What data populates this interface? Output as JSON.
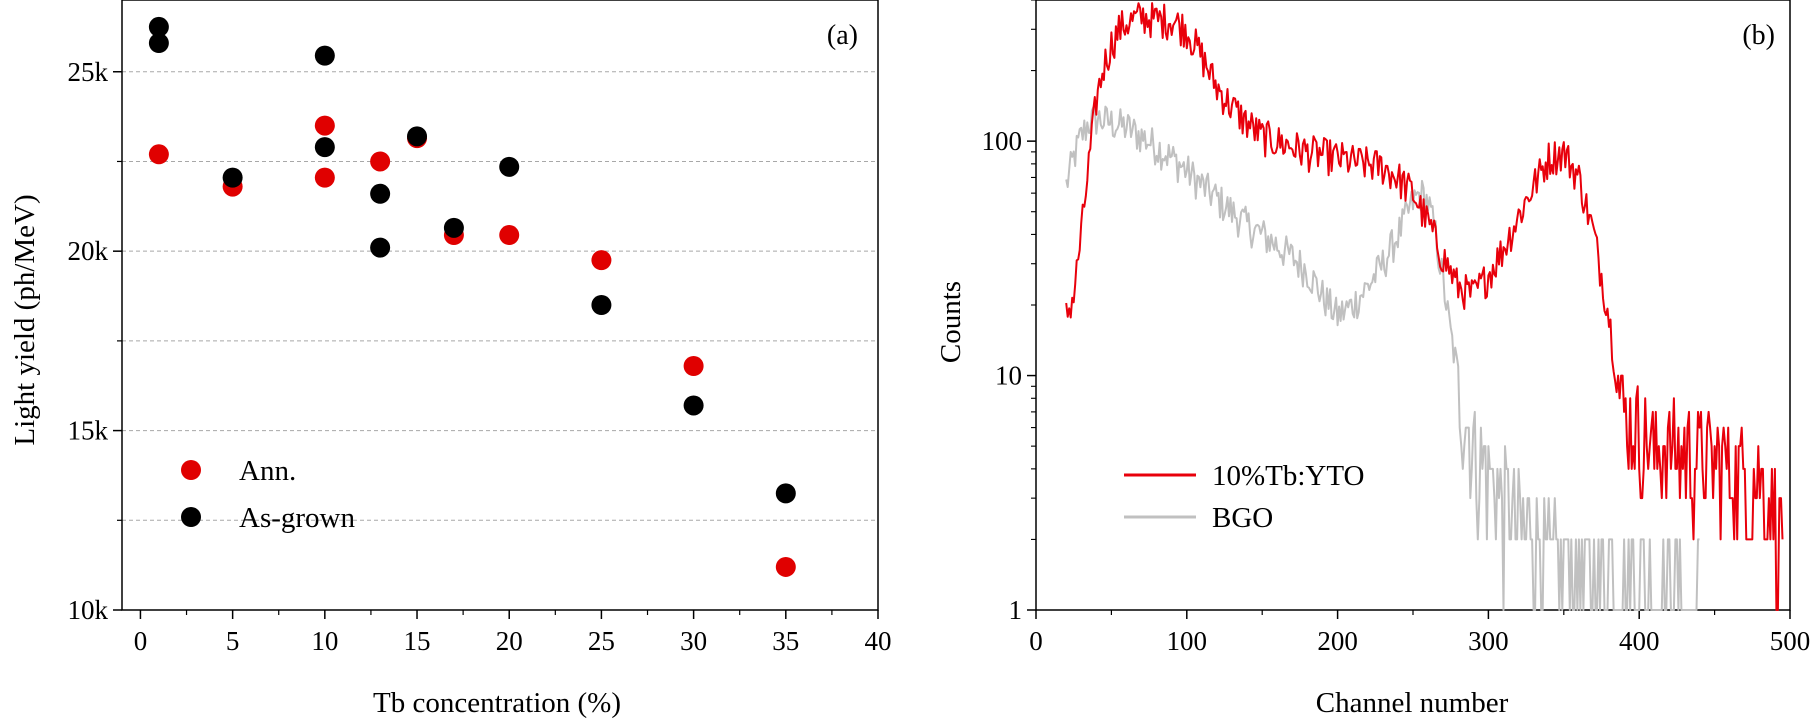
{
  "chart_data": [
    {
      "panel": "(a)",
      "type": "scatter",
      "title": "",
      "xlabel": "Tb concentration (%)",
      "ylabel": "Light yield (ph/MeV)",
      "xlim": [
        -1,
        40
      ],
      "ylim": [
        10000,
        27000
      ],
      "xticks": [
        0,
        5,
        10,
        15,
        20,
        25,
        30,
        35,
        40
      ],
      "xtick_labels": [
        "0",
        "5",
        "10",
        "15",
        "20",
        "25",
        "30",
        "35",
        "40"
      ],
      "yticks": [
        10000,
        15000,
        20000,
        25000
      ],
      "ytick_labels": [
        "10k",
        "15k",
        "20k",
        "25k"
      ],
      "grid_y": [
        12500,
        15000,
        17500,
        20000,
        22500,
        25000
      ],
      "legend_position": "lower-left",
      "series": [
        {
          "name": "Ann.",
          "color": "#e00000",
          "points": [
            [
              1,
              22700
            ],
            [
              5,
              21800
            ],
            [
              10,
              23500
            ],
            [
              10,
              22050
            ],
            [
              13,
              22500
            ],
            [
              15,
              23150
            ],
            [
              17,
              20450
            ],
            [
              20,
              20450
            ],
            [
              25,
              19750
            ],
            [
              30,
              16800
            ],
            [
              35,
              11200
            ]
          ]
        },
        {
          "name": "As-grown",
          "color": "#000000",
          "points": [
            [
              1,
              26250
            ],
            [
              1,
              25800
            ],
            [
              5,
              22050
            ],
            [
              10,
              25450
            ],
            [
              10,
              22900
            ],
            [
              13,
              21600
            ],
            [
              13,
              20100
            ],
            [
              15,
              23200
            ],
            [
              17,
              20650
            ],
            [
              20,
              22350
            ],
            [
              25,
              18500
            ],
            [
              30,
              15700
            ],
            [
              35,
              13250
            ]
          ]
        }
      ]
    },
    {
      "panel": "(b)",
      "type": "line",
      "title": "",
      "xlabel": "Channel number",
      "ylabel": "Counts",
      "xlim": [
        0,
        500
      ],
      "ylim": [
        1,
        400
      ],
      "yscale": "log",
      "xticks": [
        0,
        100,
        200,
        300,
        400,
        500
      ],
      "xtick_labels": [
        "0",
        "100",
        "200",
        "300",
        "400",
        "500"
      ],
      "yticks": [
        1,
        10,
        100
      ],
      "ytick_labels": [
        "1",
        "10",
        "100"
      ],
      "legend_position": "lower-left",
      "series": [
        {
          "name": "10%Tb:YTO",
          "color": "#e8000b",
          "x": [
            20,
            25,
            30,
            35,
            40,
            45,
            50,
            55,
            60,
            70,
            80,
            90,
            100,
            110,
            120,
            130,
            140,
            150,
            160,
            170,
            180,
            190,
            200,
            210,
            220,
            230,
            240,
            250,
            260,
            270,
            280,
            290,
            300,
            310,
            320,
            330,
            340,
            350,
            360,
            370,
            380,
            385,
            390,
            400,
            410,
            420,
            430,
            440,
            450,
            460,
            470,
            480,
            490,
            495
          ],
          "y": [
            18,
            22,
            40,
            80,
            150,
            210,
            260,
            300,
            320,
            340,
            330,
            330,
            300,
            230,
            170,
            140,
            120,
            105,
            100,
            95,
            90,
            88,
            85,
            82,
            80,
            78,
            70,
            60,
            45,
            32,
            24,
            22,
            27,
            35,
            48,
            65,
            85,
            90,
            70,
            40,
            18,
            10,
            7,
            6,
            5,
            5,
            5,
            4.5,
            4.5,
            4,
            4,
            3.5,
            3,
            2
          ]
        },
        {
          "name": "BGO",
          "color": "#c0c0c0",
          "x": [
            20,
            25,
            30,
            35,
            40,
            50,
            60,
            70,
            80,
            90,
            100,
            110,
            120,
            130,
            140,
            150,
            160,
            170,
            180,
            190,
            200,
            210,
            220,
            230,
            240,
            250,
            255,
            260,
            265,
            270,
            275,
            280,
            285,
            290,
            300,
            310,
            320,
            330,
            340,
            350,
            360,
            370,
            380,
            390,
            400,
            410,
            420,
            430,
            440
          ],
          "y": [
            65,
            85,
            105,
            120,
            125,
            120,
            115,
            105,
            95,
            85,
            75,
            65,
            57,
            50,
            44,
            40,
            36,
            32,
            28,
            22,
            18,
            20,
            24,
            30,
            40,
            55,
            60,
            55,
            40,
            25,
            15,
            10,
            7,
            5,
            4,
            3,
            2.5,
            2,
            1.8,
            1.6,
            1.6,
            1.5,
            1.5,
            1.4,
            1.4,
            1.3,
            1.3,
            1.2,
            1.2
          ]
        }
      ]
    }
  ]
}
